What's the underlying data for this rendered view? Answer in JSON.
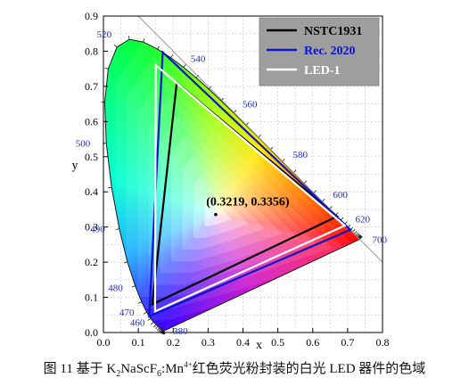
{
  "chart_data": {
    "type": "line",
    "title": "",
    "xlabel": "x",
    "ylabel": "y",
    "xlim": [
      0.0,
      0.8
    ],
    "ylim": [
      0.0,
      0.9
    ],
    "x_ticks": [
      "0.0",
      "0.1",
      "0.2",
      "0.3",
      "0.4",
      "0.5",
      "0.6",
      "0.7",
      "0.8"
    ],
    "y_ticks": [
      "0.0",
      "0.1",
      "0.2",
      "0.3",
      "0.4",
      "0.5",
      "0.6",
      "0.7",
      "0.8",
      "0.9"
    ],
    "grid": true,
    "legend_position": "top-right",
    "spectral_locus": [
      [
        0.1741,
        0.005
      ],
      [
        0.1738,
        0.0049
      ],
      [
        0.1736,
        0.0049
      ],
      [
        0.1733,
        0.0048
      ],
      [
        0.173,
        0.0048
      ],
      [
        0.1726,
        0.0048
      ],
      [
        0.1721,
        0.0048
      ],
      [
        0.1714,
        0.0051
      ],
      [
        0.1703,
        0.0058
      ],
      [
        0.1689,
        0.0069
      ],
      [
        0.1669,
        0.0086
      ],
      [
        0.1644,
        0.0109
      ],
      [
        0.1611,
        0.0138
      ],
      [
        0.1566,
        0.0177
      ],
      [
        0.151,
        0.0227
      ],
      [
        0.144,
        0.0297
      ],
      [
        0.1355,
        0.0399
      ],
      [
        0.1241,
        0.0578
      ],
      [
        0.1096,
        0.0868
      ],
      [
        0.0913,
        0.1327
      ],
      [
        0.0687,
        0.2007
      ],
      [
        0.0454,
        0.295
      ],
      [
        0.0235,
        0.4127
      ],
      [
        0.0082,
        0.5384
      ],
      [
        0.0039,
        0.6548
      ],
      [
        0.0139,
        0.7502
      ],
      [
        0.0389,
        0.812
      ],
      [
        0.0743,
        0.8338
      ],
      [
        0.1142,
        0.8262
      ],
      [
        0.1547,
        0.8059
      ],
      [
        0.1929,
        0.7816
      ],
      [
        0.2296,
        0.7543
      ],
      [
        0.2658,
        0.7243
      ],
      [
        0.3016,
        0.6923
      ],
      [
        0.3373,
        0.6589
      ],
      [
        0.3731,
        0.6245
      ],
      [
        0.4087,
        0.5896
      ],
      [
        0.4441,
        0.5547
      ],
      [
        0.4788,
        0.5202
      ],
      [
        0.5125,
        0.4866
      ],
      [
        0.5448,
        0.4544
      ],
      [
        0.5752,
        0.4242
      ],
      [
        0.6029,
        0.3965
      ],
      [
        0.627,
        0.3725
      ],
      [
        0.6482,
        0.3514
      ],
      [
        0.6658,
        0.334
      ],
      [
        0.6801,
        0.3197
      ],
      [
        0.6915,
        0.3083
      ],
      [
        0.7006,
        0.2993
      ],
      [
        0.7079,
        0.292
      ],
      [
        0.714,
        0.2859
      ],
      [
        0.719,
        0.2809
      ],
      [
        0.723,
        0.277
      ],
      [
        0.726,
        0.274
      ],
      [
        0.7283,
        0.2717
      ],
      [
        0.73,
        0.27
      ],
      [
        0.7311,
        0.2689
      ],
      [
        0.732,
        0.268
      ],
      [
        0.7327,
        0.2673
      ],
      [
        0.7334,
        0.2666
      ],
      [
        0.734,
        0.266
      ],
      [
        0.7344,
        0.2656
      ],
      [
        0.7346,
        0.2654
      ],
      [
        0.7347,
        0.2653
      ]
    ],
    "wavelength_labels": [
      {
        "label": "380",
        "x": 0.1741,
        "y": 0.005
      },
      {
        "label": "460",
        "x": 0.144,
        "y": 0.0297
      },
      {
        "label": "470",
        "x": 0.1241,
        "y": 0.0578
      },
      {
        "label": "480",
        "x": 0.0913,
        "y": 0.1327
      },
      {
        "label": "490",
        "x": 0.0454,
        "y": 0.295
      },
      {
        "label": "500",
        "x": 0.0082,
        "y": 0.5384
      },
      {
        "label": "520",
        "x": 0.0743,
        "y": 0.8338
      },
      {
        "label": "540",
        "x": 0.2296,
        "y": 0.7543
      },
      {
        "label": "560",
        "x": 0.3731,
        "y": 0.6245
      },
      {
        "label": "580",
        "x": 0.5125,
        "y": 0.4866
      },
      {
        "label": "600",
        "x": 0.627,
        "y": 0.3725
      },
      {
        "label": "620",
        "x": 0.6915,
        "y": 0.3083
      },
      {
        "label": "700",
        "x": 0.7347,
        "y": 0.2653
      }
    ],
    "series": [
      {
        "name": "NSTC1931",
        "color": "#000000",
        "points": [
          [
            0.67,
            0.33
          ],
          [
            0.21,
            0.71
          ],
          [
            0.14,
            0.08
          ]
        ]
      },
      {
        "name": "Rec. 2020",
        "color": "#0a14c8",
        "points": [
          [
            0.708,
            0.292
          ],
          [
            0.17,
            0.797
          ],
          [
            0.131,
            0.046
          ]
        ]
      },
      {
        "name": "LED-1",
        "color": "#ffffff",
        "points": [
          [
            0.692,
            0.304
          ],
          [
            0.15,
            0.76
          ],
          [
            0.148,
            0.06
          ]
        ]
      }
    ],
    "annotations": [
      {
        "text": "(0.3219, 0.3356)",
        "x": 0.3219,
        "y": 0.3356
      }
    ]
  },
  "caption": {
    "prefix": "图 11  基于 K",
    "sub1": "2",
    "mid1": "NaScF",
    "sub2": "6",
    "mid2": ":Mn",
    "sup1": "4+",
    "suffix": "红色荧光粉封装的白光 LED 器件的色域"
  }
}
